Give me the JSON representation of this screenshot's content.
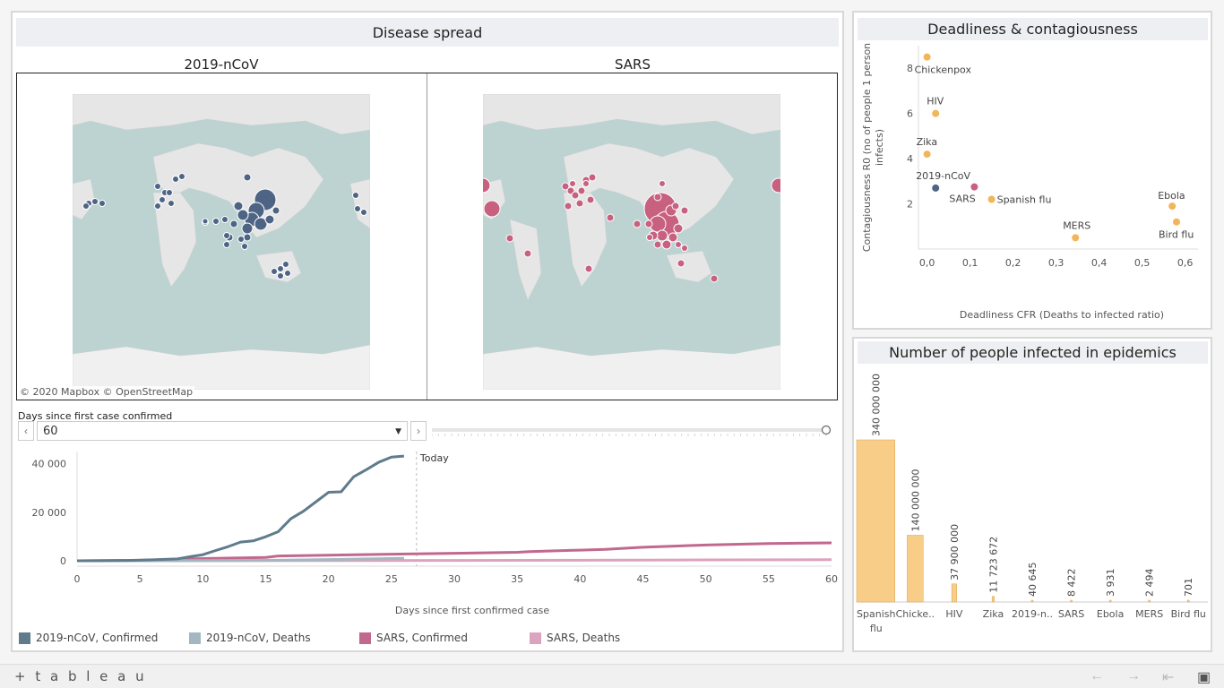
{
  "app": {
    "brand": "+ t a b l e a u"
  },
  "disease_spread": {
    "title": "Disease spread",
    "map_left_title": "2019-nCoV",
    "map_right_title": "SARS",
    "credit": "© 2020 Mapbox  © OpenStreetMap",
    "colors": {
      "ncov": "#4e6485",
      "sars": "#c8617f",
      "ocean": "#bcd3d2",
      "land": "#e8e8e8"
    }
  },
  "slider": {
    "label": "Days since first case confirmed",
    "value": "60",
    "prev_icon": "chevron-left-icon",
    "next_icon": "chevron-right-icon",
    "position_fraction": 1.0
  },
  "line_chart_labels": {
    "today": "Today",
    "xlabel": "Days since first confirmed case"
  },
  "legend": [
    {
      "label": "2019-nCoV, Confirmed",
      "color": "#5f7b8c"
    },
    {
      "label": "2019-nCoV, Deaths",
      "color": "#a4b7c1"
    },
    {
      "label": "SARS, Confirmed",
      "color": "#c1688e"
    },
    {
      "label": "SARS, Deaths",
      "color": "#dba3bd"
    }
  ],
  "scatter_panel": {
    "title": "Deadliness & contagiousness"
  },
  "bar_panel": {
    "title": "Number of people infected in epidemics"
  },
  "footer": {
    "undo_icon": "undo-arrow-icon",
    "redo_icon": "redo-arrow-icon",
    "revert_icon": "revert-icon",
    "fullscreen_icon": "fullscreen-icon"
  },
  "chart_data": [
    {
      "type": "line",
      "xlabel": "Days since first confirmed case",
      "ylabel": "",
      "xlim": [
        0,
        60
      ],
      "ylim": [
        0,
        45000
      ],
      "x_ticks": [
        0,
        5,
        10,
        15,
        20,
        25,
        30,
        35,
        40,
        45,
        50,
        55,
        60
      ],
      "x_tick_labels": [
        "0",
        "5",
        "10",
        "15",
        "20",
        "25",
        "30",
        "35",
        "40",
        "45",
        "50",
        "55",
        "60"
      ],
      "y_ticks": [
        0,
        20000,
        40000
      ],
      "y_tick_labels": [
        "0",
        "20 000",
        "40 000"
      ],
      "annotation": {
        "x": 27,
        "text": "Today"
      },
      "series": [
        {
          "name": "2019-nCoV, Confirmed",
          "color": "#5f7b8c",
          "x": [
            0,
            2,
            4,
            6,
            8,
            9,
            10,
            11,
            12,
            13,
            14,
            15,
            16,
            17,
            18,
            19,
            20,
            21,
            22,
            23,
            24,
            25,
            26
          ],
          "y": [
            0,
            50,
            150,
            400,
            800,
            1700,
            2500,
            4200,
            5800,
            7700,
            8200,
            9900,
            12000,
            17300,
            20400,
            24300,
            28200,
            28400,
            34600,
            37500,
            40600,
            42700,
            43100
          ]
        },
        {
          "name": "2019-nCoV, Deaths",
          "color": "#a4b7c1",
          "x": [
            0,
            5,
            10,
            15,
            20,
            26
          ],
          "y": [
            0,
            20,
            80,
            200,
            500,
            1000
          ]
        },
        {
          "name": "SARS, Confirmed",
          "color": "#c1688e",
          "x": [
            0,
            5,
            10,
            15,
            16,
            20,
            25,
            30,
            35,
            36,
            40,
            42,
            45,
            50,
            55,
            60
          ],
          "y": [
            0,
            200,
            900,
            1400,
            2000,
            2300,
            2700,
            3100,
            3500,
            3800,
            4400,
            4700,
            5600,
            6500,
            7100,
            7400
          ]
        },
        {
          "name": "SARS, Deaths",
          "color": "#dba3bd",
          "x": [
            0,
            10,
            20,
            30,
            40,
            50,
            60
          ],
          "y": [
            0,
            30,
            80,
            150,
            250,
            350,
            450
          ]
        }
      ]
    },
    {
      "type": "scatter",
      "xlabel": "Deadliness CFR (Deaths to infected ratio)",
      "ylabel": "Contagiousness R0 (no of people 1 person infects)",
      "xlim": [
        -0.02,
        0.63
      ],
      "ylim": [
        0,
        9
      ],
      "x_ticks": [
        0,
        0.1,
        0.2,
        0.3,
        0.4,
        0.5,
        0.6
      ],
      "x_tick_labels": [
        "0,0",
        "0,1",
        "0,2",
        "0,3",
        "0,4",
        "0,5",
        "0,6"
      ],
      "y_ticks": [
        2,
        4,
        6,
        8
      ],
      "y_tick_labels": [
        "2",
        "4",
        "6",
        "8"
      ],
      "points": [
        {
          "label": "Chickenpox",
          "x": 0.0,
          "y": 8.5,
          "color": "#f2b55a"
        },
        {
          "label": "HIV",
          "x": 0.02,
          "y": 6.0,
          "color": "#f2b55a"
        },
        {
          "label": "Zika",
          "x": 0.0,
          "y": 4.2,
          "color": "#f2b55a"
        },
        {
          "label": "2019-nCoV",
          "x": 0.02,
          "y": 2.7,
          "color": "#4e6485"
        },
        {
          "label": "SARS",
          "x": 0.11,
          "y": 2.75,
          "color": "#c8617f"
        },
        {
          "label": "Spanish flu",
          "x": 0.15,
          "y": 2.2,
          "color": "#f2b55a"
        },
        {
          "label": "MERS",
          "x": 0.345,
          "y": 0.5,
          "color": "#f2b55a"
        },
        {
          "label": "Ebola",
          "x": 0.57,
          "y": 1.9,
          "color": "#f2b55a"
        },
        {
          "label": "Bird flu",
          "x": 0.58,
          "y": 1.2,
          "color": "#f2b55a"
        }
      ]
    },
    {
      "type": "bar",
      "categories": [
        "Spanish flu",
        "Chicke..",
        "HIV",
        "Zika",
        "2019-n..",
        "SARS",
        "Ebola",
        "MERS",
        "Bird flu"
      ],
      "values": [
        340000000,
        140000000,
        37900000,
        11723672,
        40645,
        8422,
        3931,
        2494,
        701
      ],
      "value_labels": [
        "340 000 000",
        "140 000 000",
        "37 900 000",
        "11 723 672",
        "40 645",
        "8 422",
        "3 931",
        "2 494",
        "701"
      ],
      "widths_relative": [
        1.0,
        0.42,
        0.13,
        0.06,
        0.015,
        0.015,
        0.015,
        0.015,
        0.015
      ],
      "color": "#f7cd88",
      "ylim": [
        0,
        340000000
      ]
    }
  ]
}
